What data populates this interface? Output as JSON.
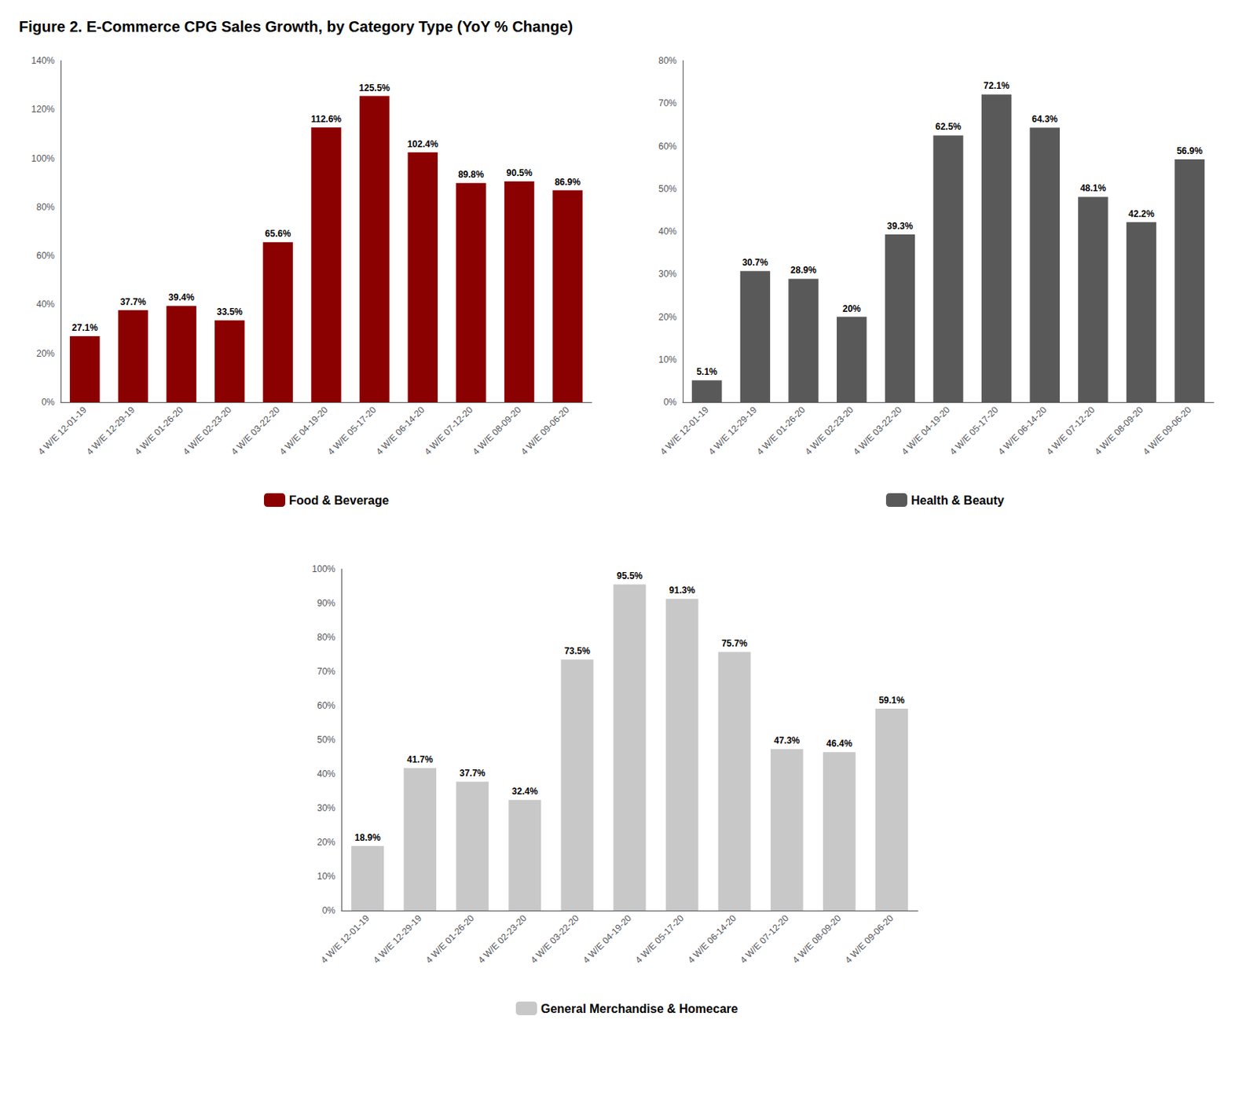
{
  "title": "Figure 2. E-Commerce CPG Sales Growth, by Category Type (YoY % Change)",
  "chart_data": [
    {
      "type": "bar",
      "categories": [
        "4 W/E 12-01-19",
        "4 W/E 12-29-19",
        "4 W/E 01-26-20",
        "4 W/E 02-23-20",
        "4 W/E 03-22-20",
        "4 W/E 04-19-20",
        "4 W/E 05-17-20",
        "4 W/E 06-14-20",
        "4 W/E 07-12-20",
        "4 W/E 08-09-20",
        "4 W/E 09-06-20"
      ],
      "series": [
        {
          "name": "Food & Beverage",
          "color": "#8B0000",
          "values": [
            27.1,
            37.7,
            39.4,
            33.5,
            65.6,
            112.6,
            125.5,
            102.4,
            89.8,
            90.5,
            86.9
          ],
          "value_labels": [
            "27.1%",
            "37.7%",
            "39.4%",
            "33.5%",
            "65.6%",
            "112.6%",
            "125.5%",
            "102.4%",
            "89.8%",
            "90.5%",
            "86.9%"
          ]
        }
      ],
      "ylim": [
        0,
        140
      ],
      "yticks": [
        {
          "value": 0,
          "label": "0%"
        },
        {
          "value": 20,
          "label": "20%"
        },
        {
          "value": 40,
          "label": "40%"
        },
        {
          "value": 60,
          "label": "60%"
        },
        {
          "value": 80,
          "label": "80%"
        },
        {
          "value": 100,
          "label": "100%"
        },
        {
          "value": 120,
          "label": "120%"
        },
        {
          "value": 140,
          "label": "140%"
        }
      ],
      "grid": false,
      "legend": "bottom",
      "data_labels": true
    },
    {
      "type": "bar",
      "categories": [
        "4 W/E 12-01-19",
        "4 W/E 12-29-19",
        "4 W/E 01-26-20",
        "4 W/E 02-23-20",
        "4 W/E 03-22-20",
        "4 W/E 04-19-20",
        "4 W/E 05-17-20",
        "4 W/E 06-14-20",
        "4 W/E 07-12-20",
        "4 W/E 08-09-20",
        "4 W/E 09-06-20"
      ],
      "series": [
        {
          "name": "Health & Beauty",
          "color": "#595959",
          "values": [
            5.1,
            30.7,
            28.9,
            20.0,
            39.3,
            62.5,
            72.1,
            64.3,
            48.1,
            42.2,
            56.9
          ],
          "value_labels": [
            "5.1%",
            "30.7%",
            "28.9%",
            "20%",
            "39.3%",
            "62.5%",
            "72.1%",
            "64.3%",
            "48.1%",
            "42.2%",
            "56.9%"
          ]
        }
      ],
      "ylim": [
        0,
        80
      ],
      "yticks": [
        {
          "value": 0,
          "label": "0%"
        },
        {
          "value": 10,
          "label": "10%"
        },
        {
          "value": 20,
          "label": "20%"
        },
        {
          "value": 30,
          "label": "30%"
        },
        {
          "value": 40,
          "label": "40%"
        },
        {
          "value": 50,
          "label": "50%"
        },
        {
          "value": 60,
          "label": "60%"
        },
        {
          "value": 70,
          "label": "70%"
        },
        {
          "value": 80,
          "label": "80%"
        }
      ],
      "grid": false,
      "legend": "bottom",
      "data_labels": true
    },
    {
      "type": "bar",
      "categories": [
        "4 W/E 12-01-19",
        "4 W/E 12-29-19",
        "4 W/E 01-26-20",
        "4 W/E 02-23-20",
        "4 W/E 03-22-20",
        "4 W/E 04-19-20",
        "4 W/E 05-17-20",
        "4 W/E 06-14-20",
        "4 W/E 07-12-20",
        "4 W/E 08-09-20",
        "4 W/E 09-06-20"
      ],
      "series": [
        {
          "name": "General Merchandise & Homecare",
          "color": "#C8C8C8",
          "values": [
            18.9,
            41.7,
            37.7,
            32.4,
            73.5,
            95.5,
            91.3,
            75.7,
            47.3,
            46.4,
            59.1
          ],
          "value_labels": [
            "18.9%",
            "41.7%",
            "37.7%",
            "32.4%",
            "73.5%",
            "95.5%",
            "91.3%",
            "75.7%",
            "47.3%",
            "46.4%",
            "59.1%"
          ]
        }
      ],
      "ylim": [
        0,
        100
      ],
      "yticks": [
        {
          "value": 0,
          "label": "0%"
        },
        {
          "value": 10,
          "label": "10%"
        },
        {
          "value": 20,
          "label": "20%"
        },
        {
          "value": 30,
          "label": "30%"
        },
        {
          "value": 40,
          "label": "40%"
        },
        {
          "value": 50,
          "label": "50%"
        },
        {
          "value": 60,
          "label": "60%"
        },
        {
          "value": 70,
          "label": "70%"
        },
        {
          "value": 80,
          "label": "80%"
        },
        {
          "value": 90,
          "label": "90%"
        },
        {
          "value": 100,
          "label": "100%"
        }
      ],
      "grid": false,
      "legend": "bottom",
      "data_labels": true
    }
  ]
}
